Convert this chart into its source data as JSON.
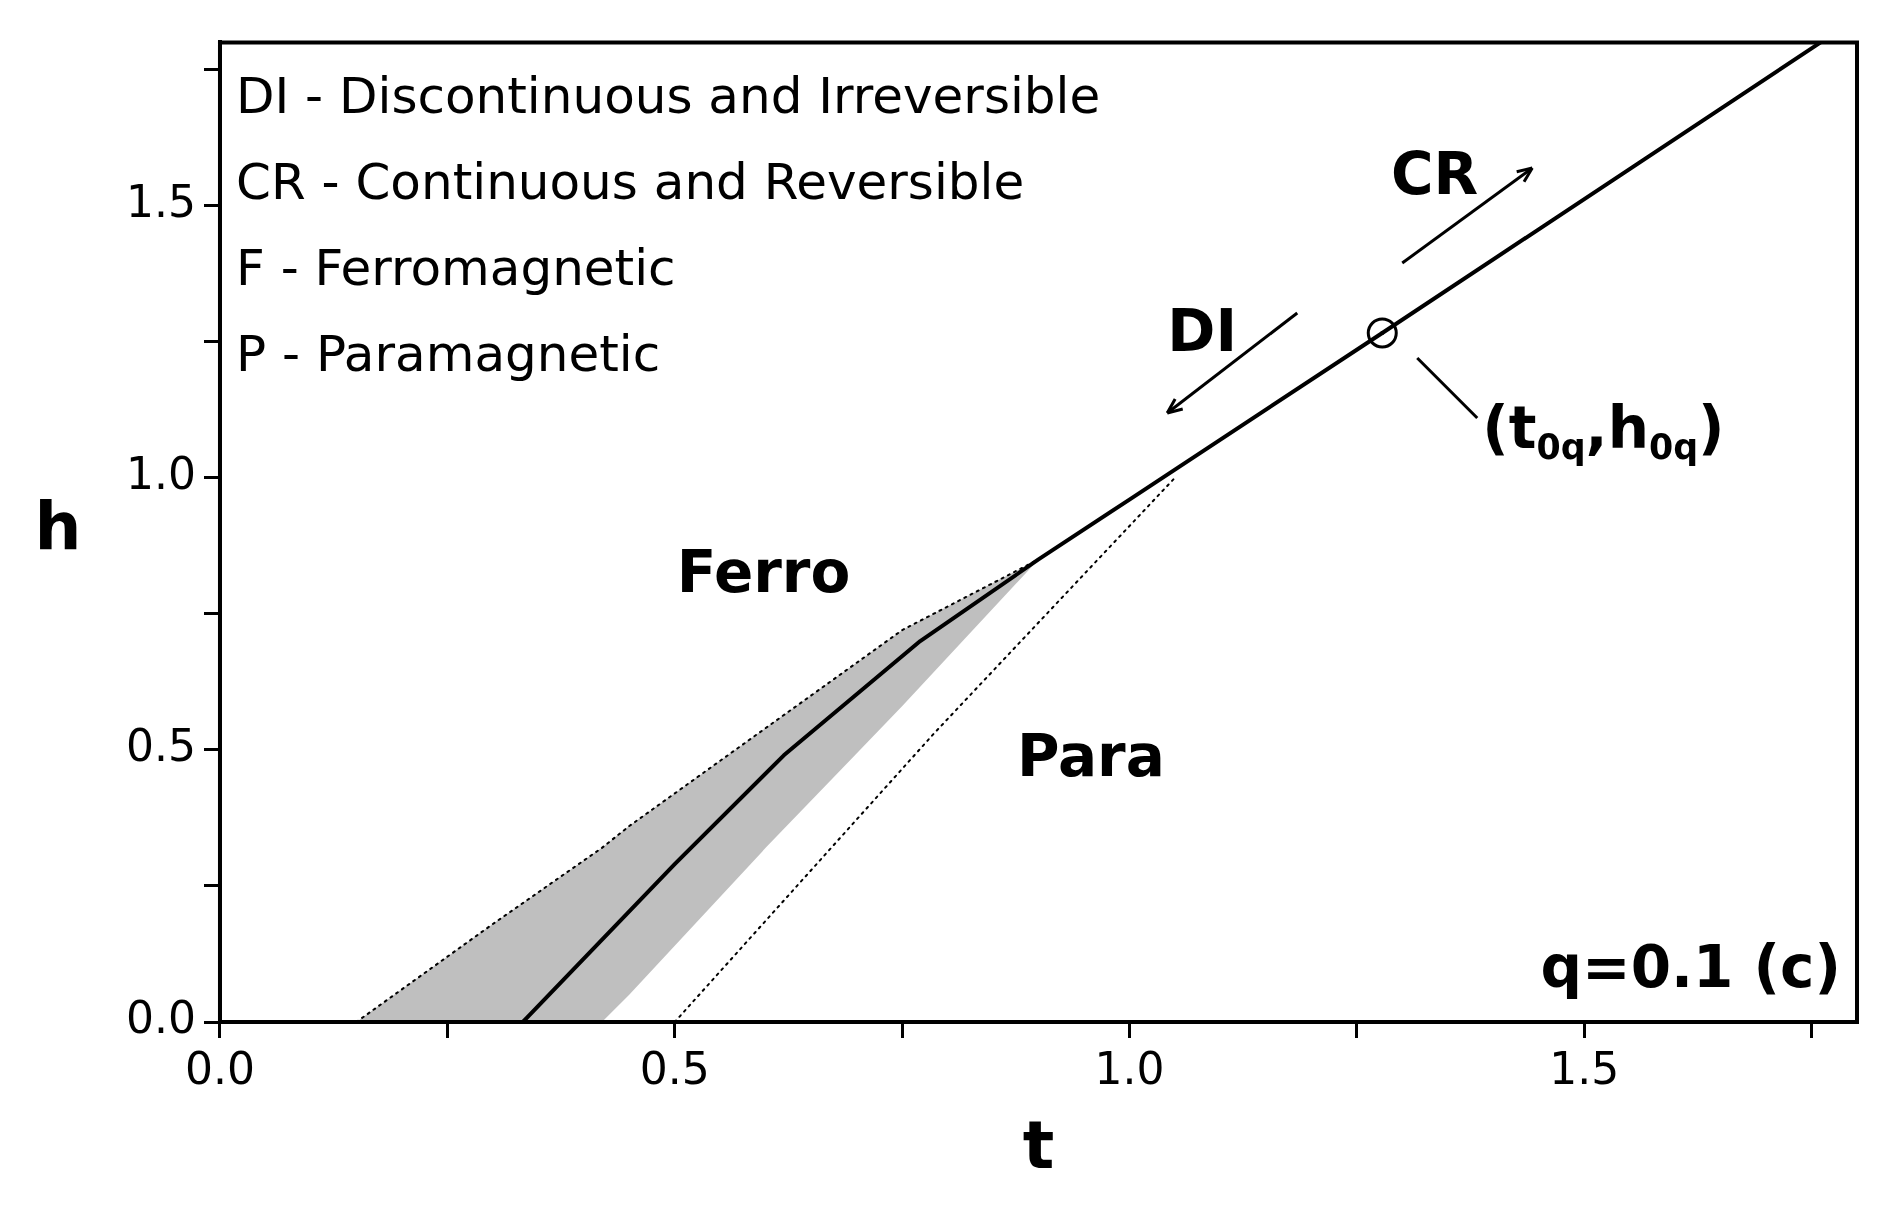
{
  "chart_data": {
    "type": "line",
    "xlabel": "t",
    "ylabel": "h",
    "xlim": [
      0,
      1.8
    ],
    "ylim": [
      0,
      1.8
    ],
    "xticks": [
      {
        "value": 0,
        "label": "0.0"
      },
      {
        "value": 0.25,
        "label": null
      },
      {
        "value": 0.5,
        "label": "0.5"
      },
      {
        "value": 0.75,
        "label": null
      },
      {
        "value": 1,
        "label": "1.0"
      },
      {
        "value": 1.25,
        "label": null
      },
      {
        "value": 1.5,
        "label": "1.5"
      },
      {
        "value": 1.75,
        "label": null
      }
    ],
    "yticks": [
      {
        "value": 0,
        "label": "0.0"
      },
      {
        "value": 0.25,
        "label": null
      },
      {
        "value": 0.5,
        "label": "0.5"
      },
      {
        "value": 0.75,
        "label": null
      },
      {
        "value": 1,
        "label": "1.0"
      },
      {
        "value": 1.25,
        "label": null
      },
      {
        "value": 1.5,
        "label": "1.5"
      },
      {
        "value": 1.75,
        "label": null
      }
    ],
    "grid": false,
    "legend": false,
    "series": [
      {
        "type": "line",
        "color": "#000000",
        "x": [
          0.333,
          0.5,
          0.62,
          0.77,
          0.9,
          1.0,
          1.278
        ],
        "values": [
          0,
          0.29,
          0.49,
          0.7,
          0.85,
          0.96,
          1.266
        ]
      },
      {
        "type": "line",
        "color": "#000000",
        "x": [
          1.278,
          1.76
        ],
        "values": [
          1.266,
          1.8
        ]
      },
      {
        "type": "line",
        "line_style": "dotted",
        "color": "#000000",
        "x": [
          0.5,
          0.785,
          1.05
        ],
        "values": [
          0,
          0.53,
          1.0
        ]
      },
      {
        "type": "line",
        "line_style": "dotted",
        "color": "#000000",
        "x": [
          0.15,
          0.3,
          0.42,
          0.45,
          0.6,
          0.75,
          0.9
        ],
        "values": [
          0,
          0.18,
          0.32,
          0.36,
          0.54,
          0.72,
          0.85
        ],
        "lower": [
          0,
          0,
          0,
          0.05,
          0.32,
          0.58,
          0.85
        ],
        "upper": [
          0,
          0.18,
          0.32,
          0.36,
          0.54,
          0.72,
          0.85
        ]
      },
      {
        "type": "scatter",
        "name": "(t$_{0q}$,h$_{0q}$)",
        "marker": "circle",
        "color": "#000000",
        "x": [
          1.278
        ],
        "values": [
          1.266
        ]
      }
    ],
    "annotations": [
      "DI - Discontinuous and Irreversible",
      "CR - Continuous and Reversible",
      "F - Ferromagnetic",
      "P - Paramagnetic",
      "q=0.1 (c)",
      "DI",
      "CR",
      "Ferro",
      "Para"
    ]
  }
}
